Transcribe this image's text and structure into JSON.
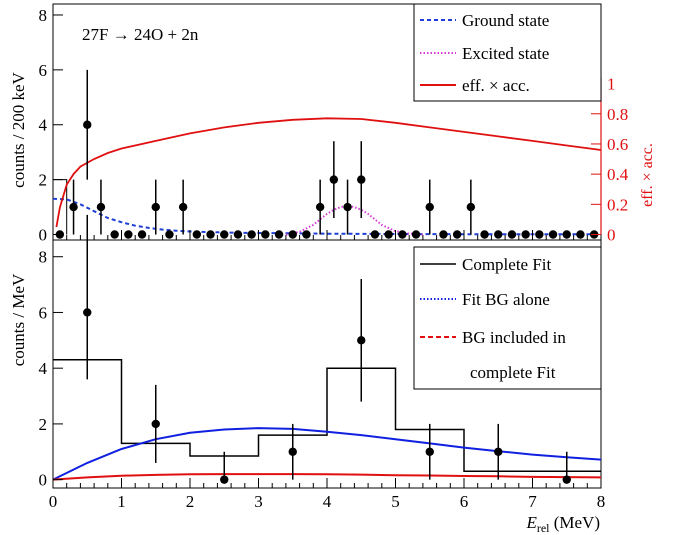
{
  "colors": {
    "ground": "#1f3fd6",
    "excited": "#d83ad8",
    "eff": "#e01010",
    "fit": "#000000",
    "bg_fit": "#1020e0",
    "bg_incl": "#e01010",
    "data": "#000000"
  },
  "chart_data": [
    {
      "type": "scatter",
      "panel": "top",
      "annotation": {
        "text": "27F → 24O + 2n"
      },
      "xlim": [
        0,
        8
      ],
      "ylim": [
        -0.2,
        8.4
      ],
      "ylabel": "counts / 200 keV",
      "yticks": [
        0,
        2,
        4,
        6,
        8
      ],
      "legend_placement": "top-right",
      "legend": [
        "Ground state",
        "Excited state",
        "eff. × acc."
      ],
      "right_axis": {
        "label": "eff. × acc.",
        "ticks": [
          "0",
          "0.2",
          "0.4",
          "0.6",
          "0.8",
          "1"
        ],
        "range": [
          0,
          1
        ]
      },
      "points": {
        "x": [
          0.1,
          0.3,
          0.5,
          0.7,
          0.9,
          1.1,
          1.3,
          1.5,
          1.7,
          1.9,
          2.1,
          2.3,
          2.5,
          2.7,
          2.9,
          3.1,
          3.3,
          3.5,
          3.7,
          3.9,
          4.1,
          4.3,
          4.5,
          4.7,
          4.9,
          5.1,
          5.3,
          5.5,
          5.7,
          5.9,
          6.1,
          6.3,
          6.5,
          6.7,
          6.9,
          7.1,
          7.3,
          7.5,
          7.7,
          7.9
        ],
        "y": [
          0,
          1,
          4,
          1,
          0,
          0,
          0,
          1,
          0,
          1,
          0,
          0,
          0,
          0,
          0,
          0,
          0,
          0,
          0,
          1,
          2,
          1,
          2,
          0,
          0,
          0,
          0,
          1,
          0,
          0,
          1,
          0,
          0,
          0,
          0,
          0,
          0,
          0,
          0,
          0
        ],
        "err": [
          0,
          1,
          2,
          1,
          0,
          0,
          0,
          1,
          0,
          1,
          0,
          0,
          0,
          0,
          0,
          0,
          0,
          0,
          0,
          1,
          1.4,
          1,
          1.4,
          0,
          0,
          0,
          0,
          1,
          0,
          0,
          1,
          0,
          0,
          0,
          0,
          0,
          0,
          0,
          0,
          0
        ]
      },
      "ground_state": {
        "x": [
          0,
          0.2,
          0.4,
          0.6,
          0.8,
          1.0,
          1.2,
          1.4,
          1.6,
          1.8,
          2.0,
          2.4,
          2.8,
          3.2,
          3.6,
          4.0,
          5.0,
          6.0,
          7.0,
          8.0
        ],
        "y": [
          1.3,
          1.28,
          1.1,
          0.85,
          0.6,
          0.45,
          0.32,
          0.24,
          0.18,
          0.14,
          0.11,
          0.08,
          0.06,
          0.05,
          0.04,
          0.03,
          0.02,
          0.01,
          0.01,
          0.01
        ]
      },
      "excited_state": {
        "x": [
          3.4,
          3.6,
          3.8,
          3.9,
          4.0,
          4.1,
          4.2,
          4.3,
          4.4,
          4.5,
          4.6,
          4.7,
          4.8,
          5.0,
          5.2,
          5.4
        ],
        "y": [
          0,
          0.1,
          0.35,
          0.55,
          0.75,
          0.9,
          1.0,
          1.05,
          1.0,
          0.9,
          0.75,
          0.55,
          0.35,
          0.12,
          0.03,
          0
        ]
      },
      "efficiency": {
        "x": [
          0.05,
          0.1,
          0.2,
          0.3,
          0.4,
          0.6,
          0.8,
          1.0,
          1.5,
          2.0,
          2.5,
          3.0,
          3.5,
          4.0,
          4.5,
          5.0,
          5.5,
          6.0,
          6.5,
          7.0,
          7.5,
          8.0
        ],
        "y": [
          0.05,
          0.18,
          0.33,
          0.4,
          0.45,
          0.5,
          0.54,
          0.57,
          0.62,
          0.67,
          0.71,
          0.74,
          0.76,
          0.77,
          0.765,
          0.74,
          0.71,
          0.68,
          0.65,
          0.62,
          0.59,
          0.56
        ]
      }
    },
    {
      "type": "scatter",
      "panel": "bottom",
      "xlim": [
        0,
        8
      ],
      "ylim": [
        -0.3,
        8.6
      ],
      "xlabel": "E_rel (MeV)",
      "xlabel_main": "E",
      "xlabel_sub": "rel",
      "xlabel_unit": " (MeV)",
      "ylabel": "counts / MeV",
      "xticks": [
        0,
        1,
        2,
        3,
        4,
        5,
        6,
        7,
        8
      ],
      "yticks": [
        0,
        2,
        4,
        6,
        8
      ],
      "legend_placement": "top-right",
      "legend": [
        "Complete Fit",
        "Fit BG alone",
        "BG included in",
        "complete Fit"
      ],
      "complete_fit": {
        "edges": [
          0,
          1,
          2,
          2.5,
          3,
          4,
          5,
          6,
          7,
          8
        ],
        "values": [
          4.3,
          1.3,
          0.85,
          0.85,
          1.6,
          4.0,
          1.8,
          0.3,
          0.3
        ]
      },
      "points": {
        "x": [
          0.5,
          1.5,
          2.5,
          3.5,
          4.5,
          5.5,
          6.5,
          7.5
        ],
        "y": [
          6,
          2,
          0,
          1,
          5,
          1,
          1,
          0
        ],
        "err": [
          2.4,
          1.4,
          0,
          1,
          2.2,
          1,
          1,
          0
        ],
        "err_up": [
          3.5,
          1.4,
          1,
          1,
          2.2,
          1,
          1,
          1
        ]
      },
      "bg_alone": {
        "x": [
          0,
          0.5,
          1.0,
          1.5,
          2.0,
          2.5,
          3.0,
          3.5,
          4.0,
          4.5,
          5.0,
          5.5,
          6.0,
          6.5,
          7.0,
          7.5,
          8.0
        ],
        "y": [
          0,
          0.6,
          1.1,
          1.45,
          1.68,
          1.8,
          1.85,
          1.82,
          1.72,
          1.6,
          1.45,
          1.3,
          1.15,
          1.02,
          0.9,
          0.8,
          0.72
        ]
      },
      "bg_included": {
        "x": [
          0,
          0.5,
          1.0,
          1.5,
          2.0,
          2.5,
          3.0,
          3.5,
          4.0,
          4.5,
          5.0,
          5.5,
          6.0,
          6.5,
          7.0,
          7.5,
          8.0
        ],
        "y": [
          0,
          0.08,
          0.14,
          0.17,
          0.19,
          0.2,
          0.2,
          0.2,
          0.19,
          0.18,
          0.16,
          0.15,
          0.13,
          0.12,
          0.1,
          0.09,
          0.08
        ]
      }
    }
  ]
}
